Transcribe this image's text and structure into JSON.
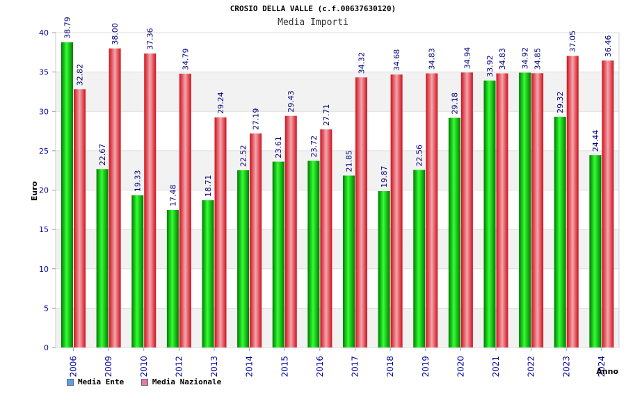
{
  "header": {
    "title": "CROSIO DELLA VALLE (c.f.00637630120)",
    "subtitle": "Media Importi"
  },
  "legend": {
    "items": [
      {
        "label": "Media Ente",
        "color": "#5a9fe8"
      },
      {
        "label": "Media Nazionale",
        "color": "#e07aa8"
      }
    ]
  },
  "colors": {
    "ente_bar": "#00c000",
    "nazionale_bar": "#e8202a",
    "label_text": "#000080",
    "axis_text": "#0000a0"
  },
  "chart_data": {
    "type": "bar",
    "xlabel": "Anno",
    "ylabel": "Euro",
    "ylim": [
      0,
      40
    ],
    "yticks": [
      0,
      5,
      10,
      15,
      20,
      25,
      30,
      35,
      40
    ],
    "grid": true,
    "legend_position": "bottom-left",
    "categories": [
      "2006",
      "2009",
      "2010",
      "2012",
      "2013",
      "2014",
      "2015",
      "2016",
      "2017",
      "2018",
      "2019",
      "2020",
      "2021",
      "2022",
      "2023",
      "2024"
    ],
    "series": [
      {
        "name": "Media Ente",
        "values": [
          38.79,
          22.67,
          19.33,
          17.48,
          18.71,
          22.52,
          23.61,
          23.72,
          21.85,
          19.87,
          22.56,
          29.18,
          33.92,
          34.92,
          29.32,
          24.44
        ],
        "labels": [
          "38.79",
          "22.67",
          "19.33",
          "17.48",
          "18.71",
          "22.52",
          "23.61",
          "23.72",
          "21.85",
          "19.87",
          "22.56",
          "29.18",
          "33.92",
          "34.92",
          "29.32",
          "24.44"
        ]
      },
      {
        "name": "Media Nazionale",
        "values": [
          32.82,
          38.0,
          37.36,
          34.79,
          29.24,
          27.19,
          29.43,
          27.71,
          34.32,
          34.68,
          34.83,
          34.94,
          34.83,
          34.85,
          37.05,
          36.46
        ],
        "labels": [
          "32.82",
          "38.00",
          "37.36",
          "34.79",
          "29.24",
          "27.19",
          "29.43",
          "27.71",
          "34.32",
          "34.68",
          "34.83",
          "34.94",
          "34.83",
          "34.85",
          "37.05",
          "36.46"
        ]
      }
    ]
  }
}
